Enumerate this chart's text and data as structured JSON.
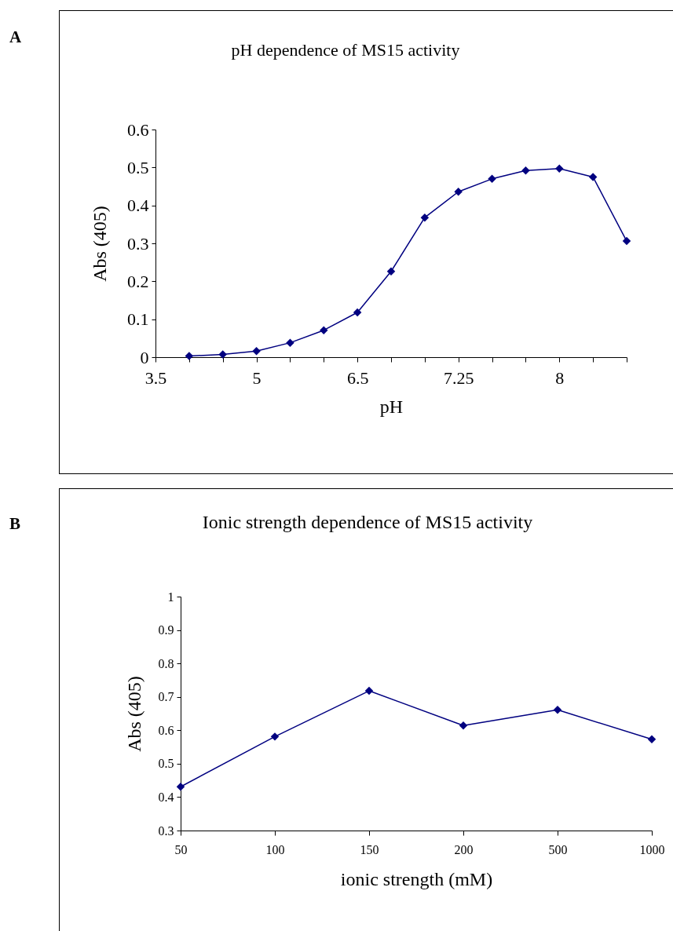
{
  "chart_data": [
    {
      "type": "line",
      "title": "pH dependence of MS15 activity",
      "xlabel": "pH",
      "ylabel": "Abs (405)",
      "annotations": [
        "A"
      ],
      "categories": [
        "3.5",
        null,
        null,
        "5",
        null,
        null,
        "6.5",
        null,
        null,
        "7.25",
        null,
        null,
        "8",
        null,
        null
      ],
      "series": [
        {
          "color": "#000080",
          "values": [
            null,
            0.003,
            0.007,
            0.016,
            0.038,
            0.071,
            0.118,
            0.226,
            0.368,
            0.436,
            0.47,
            0.492,
            0.497,
            0.475,
            0.306
          ]
        }
      ],
      "ylim": [
        0,
        0.6
      ],
      "yticks": [
        0,
        0.1,
        0.2,
        0.3,
        0.4,
        0.5,
        0.6
      ],
      "marker": "diamond"
    },
    {
      "type": "line",
      "title": "Ionic strength dependence of MS15 activity",
      "xlabel": "ionic strength (mM)",
      "ylabel": "Abs (405)",
      "annotations": [
        "B"
      ],
      "categories": [
        "50",
        "100",
        "150",
        "200",
        "500",
        "1000"
      ],
      "series": [
        {
          "color": "#000080",
          "values": [
            0.431,
            0.581,
            0.718,
            0.614,
            0.661,
            0.573
          ]
        }
      ],
      "ylim": [
        0.3,
        1
      ],
      "yticks": [
        0.3,
        0.4,
        0.5,
        0.6,
        0.7,
        0.8,
        0.9,
        1
      ],
      "marker": "diamond"
    }
  ]
}
